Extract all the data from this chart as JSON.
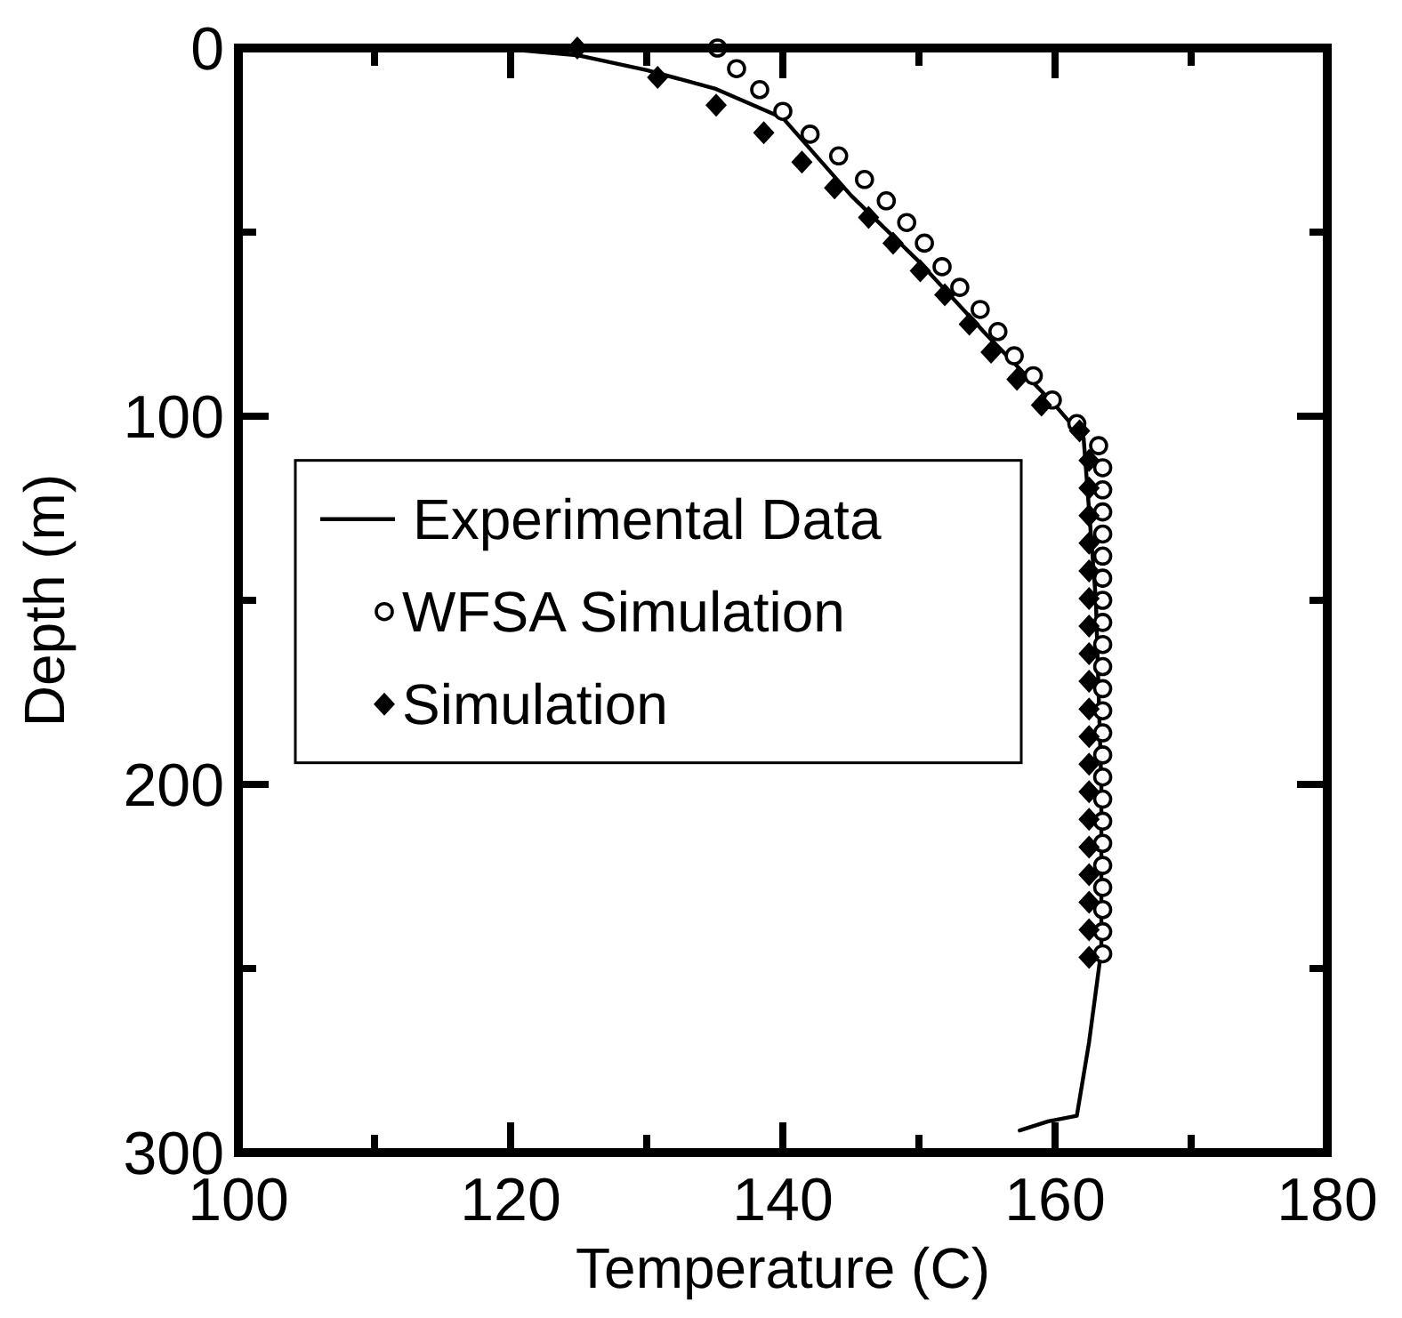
{
  "chart_data": {
    "type": "line",
    "xlabel": "Temperature (C)",
    "ylabel": "Depth (m)",
    "xlim": [
      100,
      180
    ],
    "ylim": [
      300,
      0
    ],
    "xticks": [
      100,
      {
        "value": 110,
        "label": null
      },
      120,
      {
        "value": 130,
        "label": null
      },
      140,
      {
        "value": 150,
        "label": null
      },
      160,
      {
        "value": 170,
        "label": null
      },
      180
    ],
    "yticks": [
      0,
      {
        "value": 50,
        "label": null
      },
      100,
      {
        "value": 150,
        "label": null
      },
      200,
      {
        "value": 250,
        "label": null
      },
      300
    ],
    "grid": false,
    "legend": "left",
    "line_style": "solid",
    "series": [
      {
        "name": "Experimental Data",
        "marker": "none",
        "color": "#000000",
        "x": [
          115,
          120.4,
          125,
          130,
          135,
          140,
          145,
          150,
          155,
          160,
          162.1,
          163,
          163.4,
          163.4,
          162.5,
          161.6,
          159.5,
          157.4
        ],
        "values": [
          0,
          0.5,
          2,
          6,
          11,
          19,
          40,
          58,
          78,
          97,
          106,
          150,
          200,
          245,
          270,
          290,
          291.5,
          294
        ]
      },
      {
        "name": "WFSA Simulation",
        "type": "scatter",
        "marker": "circle",
        "color": "#000000",
        "x": [
          135.2,
          136.6,
          138.3,
          140,
          142,
          144.1,
          146,
          147.6,
          149.1,
          150.4,
          151.7,
          153,
          154.5,
          155.8,
          157,
          158.4,
          159.8,
          161.6,
          163.2,
          163.5,
          163.5,
          163.5,
          163.5,
          163.5,
          163.5,
          163.5,
          163.5,
          163.5,
          163.5,
          163.5,
          163.5,
          163.5,
          163.5,
          163.5,
          163.5,
          163.5,
          163.5,
          163.5,
          163.5,
          163.5,
          163.5,
          163.5
        ],
        "values": [
          0,
          5.6,
          11.3,
          17.2,
          23.4,
          29.3,
          35.7,
          41.5,
          47.4,
          53,
          59.4,
          65,
          71,
          77,
          83.6,
          89,
          95.6,
          102,
          108,
          114,
          120,
          126,
          132,
          138,
          144,
          150,
          156,
          162,
          168,
          174,
          180,
          186,
          192,
          198,
          204,
          210,
          216,
          222,
          228,
          234,
          240,
          246
        ]
      },
      {
        "name": "Simulation",
        "type": "scatter",
        "marker": "diamond",
        "color": "#000000",
        "x": [
          124.9,
          130.8,
          135.1,
          138.6,
          141.4,
          143.8,
          146.3,
          148.1,
          150.1,
          151.9,
          153.7,
          155.3,
          157.2,
          159,
          161.8,
          162.5,
          162.5,
          162.5,
          162.5,
          162.5,
          162.5,
          162.5,
          162.5,
          162.5,
          162.5,
          162.5,
          162.5,
          162.5,
          162.5,
          162.5,
          162.5,
          162.5,
          162.5,
          162.5
        ],
        "values": [
          0,
          8,
          15.5,
          23,
          31,
          38,
          46,
          53,
          60.5,
          67,
          75,
          82.6,
          90,
          97,
          104,
          112,
          119.5,
          127,
          134.5,
          142,
          149.5,
          157,
          164.5,
          172,
          179.5,
          187,
          194.5,
          202,
          209.5,
          217,
          224.5,
          232,
          239.5,
          247
        ]
      }
    ]
  }
}
